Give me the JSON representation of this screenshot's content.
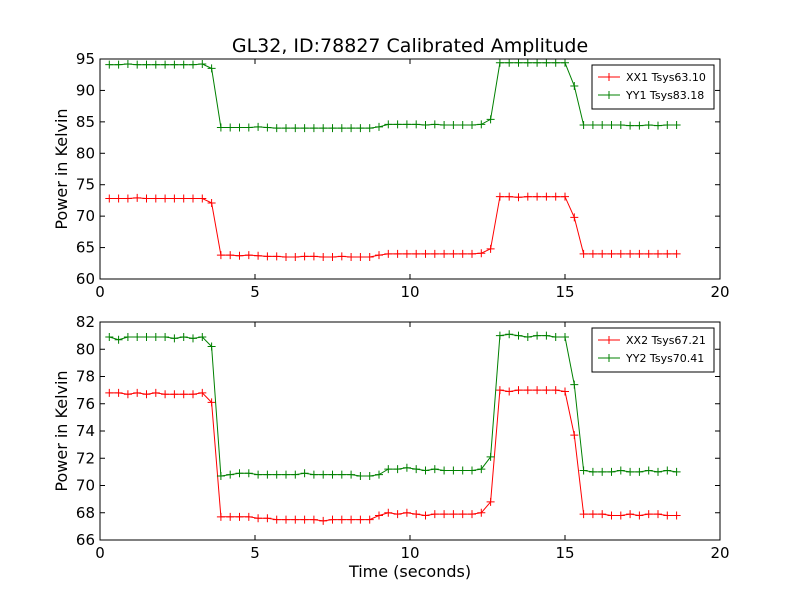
{
  "figure_title": "GL32, ID:78827 Calibrated Amplitude",
  "chart_data": [
    {
      "type": "line",
      "title": "GL32, ID:78827 Calibrated Amplitude",
      "xlabel": "",
      "ylabel": "Power in Kelvin",
      "xlim": [
        0,
        20
      ],
      "ylim": [
        60,
        95
      ],
      "xticks": [
        0,
        5,
        10,
        15,
        20
      ],
      "yticks": [
        60,
        65,
        70,
        75,
        80,
        85,
        90,
        95
      ],
      "grid": false,
      "legend_position": "top-right",
      "x": [
        0.3,
        0.6,
        0.9,
        1.2,
        1.5,
        1.8,
        2.1,
        2.4,
        2.7,
        3.0,
        3.3,
        3.6,
        3.9,
        4.2,
        4.5,
        4.8,
        5.1,
        5.4,
        5.7,
        6.0,
        6.3,
        6.6,
        6.9,
        7.2,
        7.5,
        7.8,
        8.1,
        8.4,
        8.7,
        9.0,
        9.3,
        9.6,
        9.9,
        10.2,
        10.5,
        10.8,
        11.1,
        11.4,
        11.7,
        12.0,
        12.3,
        12.6,
        12.9,
        13.2,
        13.5,
        13.8,
        14.1,
        14.4,
        14.7,
        15.0,
        15.3,
        15.6,
        15.9,
        16.2,
        16.5,
        16.8,
        17.1,
        17.4,
        17.7,
        18.0,
        18.3,
        18.6
      ],
      "series": [
        {
          "name": "XX1 Tsys63.10",
          "color": "#ff0000",
          "values": [
            72.8,
            72.8,
            72.8,
            72.9,
            72.8,
            72.8,
            72.8,
            72.8,
            72.8,
            72.8,
            72.8,
            72.1,
            63.8,
            63.8,
            63.7,
            63.8,
            63.7,
            63.6,
            63.6,
            63.5,
            63.5,
            63.6,
            63.6,
            63.5,
            63.5,
            63.6,
            63.5,
            63.5,
            63.5,
            63.8,
            64.0,
            64.0,
            64.0,
            64.0,
            64.0,
            64.0,
            64.0,
            64.0,
            64.0,
            64.0,
            64.1,
            64.8,
            73.1,
            73.1,
            73.0,
            73.1,
            73.1,
            73.1,
            73.1,
            73.1,
            69.8,
            64.0,
            64.0,
            64.0,
            64.0,
            64.0,
            64.0,
            64.0,
            64.0,
            64.0,
            64.0,
            64.0
          ]
        },
        {
          "name": "YY1 Tsys83.18",
          "color": "#008000",
          "values": [
            94.1,
            94.1,
            94.2,
            94.1,
            94.1,
            94.1,
            94.1,
            94.1,
            94.1,
            94.1,
            94.2,
            93.5,
            84.1,
            84.1,
            84.1,
            84.1,
            84.2,
            84.1,
            84.0,
            84.0,
            84.0,
            84.0,
            84.0,
            84.0,
            84.0,
            84.0,
            84.0,
            84.0,
            84.0,
            84.2,
            84.6,
            84.6,
            84.6,
            84.6,
            84.5,
            84.6,
            84.5,
            84.5,
            84.5,
            84.5,
            84.6,
            85.4,
            94.4,
            94.4,
            94.4,
            94.4,
            94.4,
            94.4,
            94.4,
            94.4,
            90.7,
            84.5,
            84.5,
            84.5,
            84.5,
            84.5,
            84.4,
            84.4,
            84.5,
            84.4,
            84.5,
            84.5
          ]
        }
      ]
    },
    {
      "type": "line",
      "title": "",
      "xlabel": "Time (seconds)",
      "ylabel": "Power in Kelvin",
      "xlim": [
        0,
        20
      ],
      "ylim": [
        66,
        82
      ],
      "xticks": [
        0,
        5,
        10,
        15,
        20
      ],
      "yticks": [
        66,
        68,
        70,
        72,
        74,
        76,
        78,
        80,
        82
      ],
      "grid": false,
      "legend_position": "top-right",
      "x": [
        0.3,
        0.6,
        0.9,
        1.2,
        1.5,
        1.8,
        2.1,
        2.4,
        2.7,
        3.0,
        3.3,
        3.6,
        3.9,
        4.2,
        4.5,
        4.8,
        5.1,
        5.4,
        5.7,
        6.0,
        6.3,
        6.6,
        6.9,
        7.2,
        7.5,
        7.8,
        8.1,
        8.4,
        8.7,
        9.0,
        9.3,
        9.6,
        9.9,
        10.2,
        10.5,
        10.8,
        11.1,
        11.4,
        11.7,
        12.0,
        12.3,
        12.6,
        12.9,
        13.2,
        13.5,
        13.8,
        14.1,
        14.4,
        14.7,
        15.0,
        15.3,
        15.6,
        15.9,
        16.2,
        16.5,
        16.8,
        17.1,
        17.4,
        17.7,
        18.0,
        18.3,
        18.6
      ],
      "series": [
        {
          "name": "XX2 Tsys67.21",
          "color": "#ff0000",
          "values": [
            76.8,
            76.8,
            76.7,
            76.8,
            76.7,
            76.8,
            76.7,
            76.7,
            76.7,
            76.7,
            76.8,
            76.1,
            67.7,
            67.7,
            67.7,
            67.7,
            67.6,
            67.6,
            67.5,
            67.5,
            67.5,
            67.5,
            67.5,
            67.4,
            67.5,
            67.5,
            67.5,
            67.5,
            67.5,
            67.8,
            68.0,
            67.9,
            68.0,
            67.9,
            67.8,
            67.9,
            67.9,
            67.9,
            67.9,
            67.9,
            68.0,
            68.8,
            77.0,
            76.9,
            77.0,
            77.0,
            77.0,
            77.0,
            77.0,
            76.9,
            73.7,
            67.9,
            67.9,
            67.9,
            67.8,
            67.8,
            67.9,
            67.8,
            67.9,
            67.9,
            67.8,
            67.8
          ]
        },
        {
          "name": "YY2 Tsys70.41",
          "color": "#008000",
          "values": [
            80.9,
            80.7,
            80.9,
            80.9,
            80.9,
            80.9,
            80.9,
            80.8,
            80.9,
            80.8,
            80.9,
            80.2,
            70.7,
            70.8,
            70.9,
            70.9,
            70.8,
            70.8,
            70.8,
            70.8,
            70.8,
            70.9,
            70.8,
            70.8,
            70.8,
            70.8,
            70.8,
            70.7,
            70.7,
            70.8,
            71.2,
            71.2,
            71.3,
            71.2,
            71.1,
            71.2,
            71.1,
            71.1,
            71.1,
            71.1,
            71.2,
            72.1,
            81.0,
            81.1,
            81.0,
            80.9,
            81.0,
            81.0,
            80.9,
            80.9,
            77.4,
            71.1,
            71.0,
            71.0,
            71.0,
            71.1,
            71.0,
            71.0,
            71.1,
            71.0,
            71.1,
            71.0
          ]
        }
      ]
    }
  ]
}
